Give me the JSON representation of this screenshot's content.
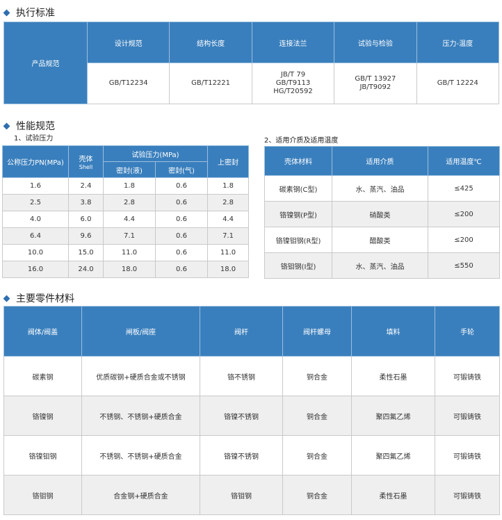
{
  "sections": {
    "standards": "执行标准",
    "performance": "性能规范",
    "materials": "主要零件材料"
  },
  "standards": {
    "row_label": "产品规范",
    "headers": [
      "设计规范",
      "结构长度",
      "连接法兰",
      "试验与检验",
      "压力-温度"
    ],
    "values": [
      "GB/T12234",
      "GB/T12221",
      "JB/T 79\nGB/T9113\nHG/T20592",
      "GB/T 13927\nJB/T9092",
      "GB/T 12224"
    ]
  },
  "pressure": {
    "title": "1、试验压力",
    "h_pn": "公称压力PN(MPa)",
    "h_shell": "壳体",
    "h_shell_en": "Shell",
    "h_test": "试验压力(MPa)",
    "h_liquid": "密封(液)",
    "h_gas": "密封(气)",
    "h_upper": "上密封",
    "rows": [
      [
        "1.6",
        "2.4",
        "1.8",
        "0.6",
        "1.8"
      ],
      [
        "2.5",
        "3.8",
        "2.8",
        "0.6",
        "2.8"
      ],
      [
        "4.0",
        "6.0",
        "4.4",
        "0.6",
        "4.4"
      ],
      [
        "6.4",
        "9.6",
        "7.1",
        "0.6",
        "7.1"
      ],
      [
        "10.0",
        "15.0",
        "11.0",
        "0.6",
        "11.0"
      ],
      [
        "16.0",
        "24.0",
        "18.0",
        "0.6",
        "18.0"
      ]
    ]
  },
  "media": {
    "title": "2、适用介质及适用温度",
    "headers": [
      "壳体材料",
      "适用介质",
      "适用温度℃"
    ],
    "rows": [
      [
        "碳素钢(C型)",
        "水、蒸汽、油品",
        "≤425"
      ],
      [
        "铬镍钢(P型)",
        "硝酸类",
        "≤200"
      ],
      [
        "铬镍钼钢(R型)",
        "醋酸类",
        "≤200"
      ],
      [
        "铬钼钢(I型)",
        "水、蒸汽、油品",
        "≤550"
      ]
    ]
  },
  "parts": {
    "headers": [
      "阀体/阀盖",
      "闸板/阀座",
      "阀杆",
      "阀杆螺母",
      "填料",
      "手轮"
    ],
    "rows": [
      [
        "碳素钢",
        "优质碳钢+硬质合金或不锈钢",
        "铬不锈钢",
        "铜合金",
        "柔性石墨",
        "可锻铸铁"
      ],
      [
        "铬镍钢",
        "不锈钢、不锈钢+硬质合金",
        "铬镍不锈钢",
        "铜合金",
        "聚四氟乙烯",
        "可锻铸铁"
      ],
      [
        "铬镍钼钢",
        "不锈钢、不锈钢+硬质合金",
        "铬镍不锈钢",
        "铜合金",
        "聚四氟乙烯",
        "可锻铸铁"
      ],
      [
        "铬钼钢",
        "合金钢+硬质合金",
        "铬钼钢",
        "铜合金",
        "柔性石墨",
        "可锻铸铁"
      ]
    ]
  },
  "colors": {
    "header": "#3a7fbd",
    "alt_row": "#efefef"
  }
}
